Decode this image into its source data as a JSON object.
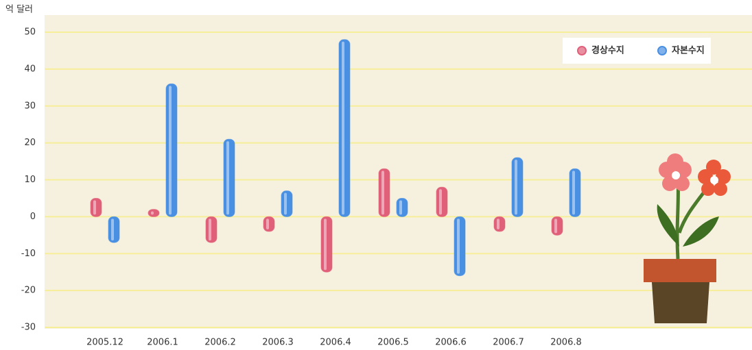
{
  "chart_data": {
    "type": "bar",
    "y_label": "억 달러",
    "categories": [
      "2005.12",
      "2006.1",
      "2006.2",
      "2006.3",
      "2006.4",
      "2006.5",
      "2006.6",
      "2006.7",
      "2006.8"
    ],
    "series": [
      {
        "name": "경상수지",
        "color": "#e0607a",
        "values": [
          5,
          2,
          -7,
          -4,
          -15,
          13,
          8,
          -4,
          -5
        ]
      },
      {
        "name": "자본수지",
        "color": "#4a90e2",
        "values": [
          -7,
          36,
          21,
          7,
          48,
          5,
          -16,
          16,
          13
        ]
      }
    ],
    "ylim": [
      -30,
      50
    ],
    "yticks": [
      -30,
      -20,
      -10,
      0,
      10,
      20,
      30,
      40,
      50
    ],
    "grid": true,
    "legend": "upper right"
  }
}
